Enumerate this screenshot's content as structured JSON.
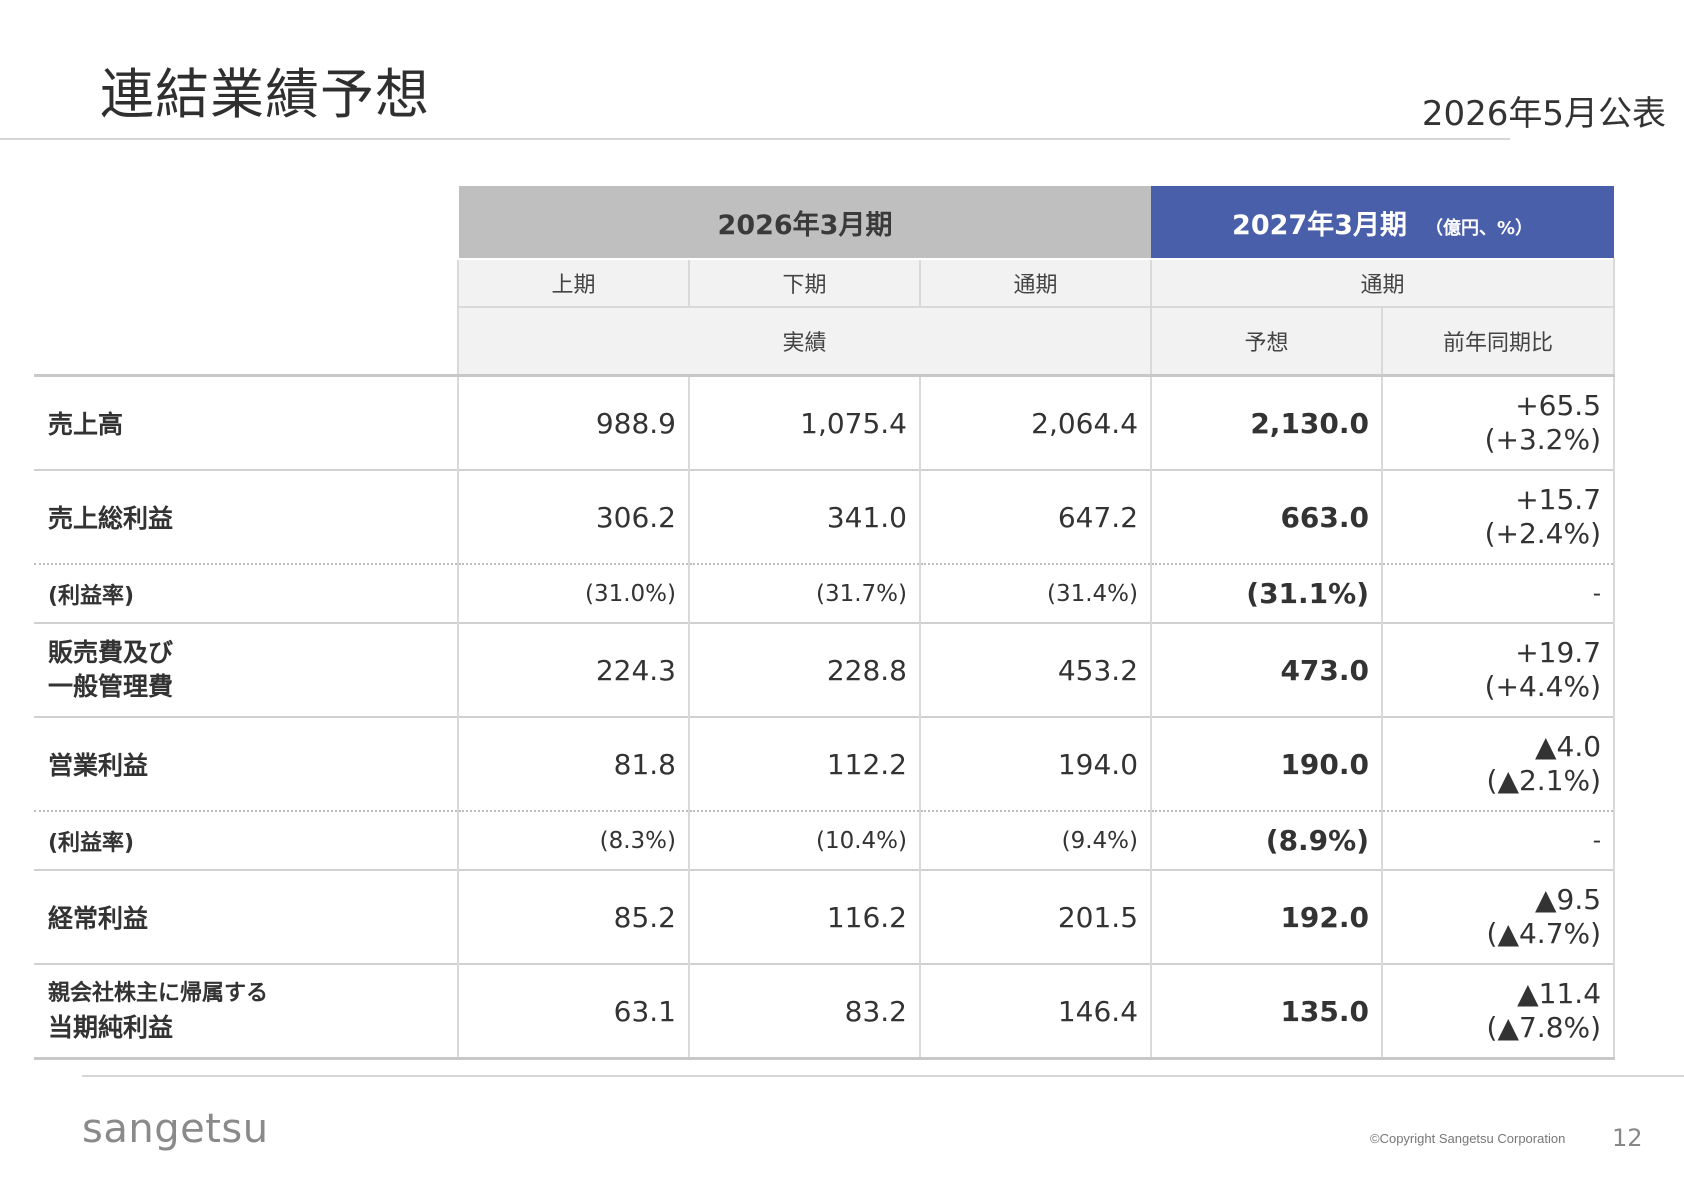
{
  "header": {
    "title": "連結業績予想",
    "date": "2026年5月公表"
  },
  "table": {
    "period_prev": "2026年3月期",
    "period_next": "2027年3月期",
    "unit": "（億円、%）",
    "sub_h1": "上期",
    "sub_h2": "下期",
    "sub_full": "通期",
    "sub_full_next": "通期",
    "actual": "実績",
    "forecast": "予想",
    "yoy": "前年同期比",
    "rows": [
      {
        "label1": "売上高",
        "label2": "",
        "h1": "988.9",
        "h2": "1,075.4",
        "full": "2,064.4",
        "fc": "2,130.0",
        "yoy1": "+65.5",
        "yoy2": "(+3.2%)"
      },
      {
        "label1": "売上総利益",
        "label2": "",
        "h1": "306.2",
        "h2": "341.0",
        "full": "647.2",
        "fc": "663.0",
        "yoy1": "+15.7",
        "yoy2": "(+2.4%)"
      },
      {
        "label1": "(利益率)",
        "label2": "",
        "h1": "(31.0%)",
        "h2": "(31.7%)",
        "full": "(31.4%)",
        "fc": "(31.1%)",
        "yoy1": "-",
        "yoy2": ""
      },
      {
        "label1": "販売費及び",
        "label2": "一般管理費",
        "h1": "224.3",
        "h2": "228.8",
        "full": "453.2",
        "fc": "473.0",
        "yoy1": "+19.7",
        "yoy2": "(+4.4%)"
      },
      {
        "label1": "営業利益",
        "label2": "",
        "h1": "81.8",
        "h2": "112.2",
        "full": "194.0",
        "fc": "190.0",
        "yoy1": "▲4.0",
        "yoy2": "(▲2.1%)"
      },
      {
        "label1": "(利益率)",
        "label2": "",
        "h1": "(8.3%)",
        "h2": "(10.4%)",
        "full": "(9.4%)",
        "fc": "(8.9%)",
        "yoy1": "-",
        "yoy2": ""
      },
      {
        "label1": "経常利益",
        "label2": "",
        "h1": "85.2",
        "h2": "116.2",
        "full": "201.5",
        "fc": "192.0",
        "yoy1": "▲9.5",
        "yoy2": "(▲4.7%)"
      },
      {
        "label1": "親会社株主に帰属する",
        "label2": "当期純利益",
        "h1": "63.1",
        "h2": "83.2",
        "full": "146.4",
        "fc": "135.0",
        "yoy1": "▲11.4",
        "yoy2": "(▲7.8%)"
      }
    ]
  },
  "footer": {
    "logo": "sangetsu",
    "copyright": "©Copyright Sangetsu Corporation",
    "page": "12"
  }
}
